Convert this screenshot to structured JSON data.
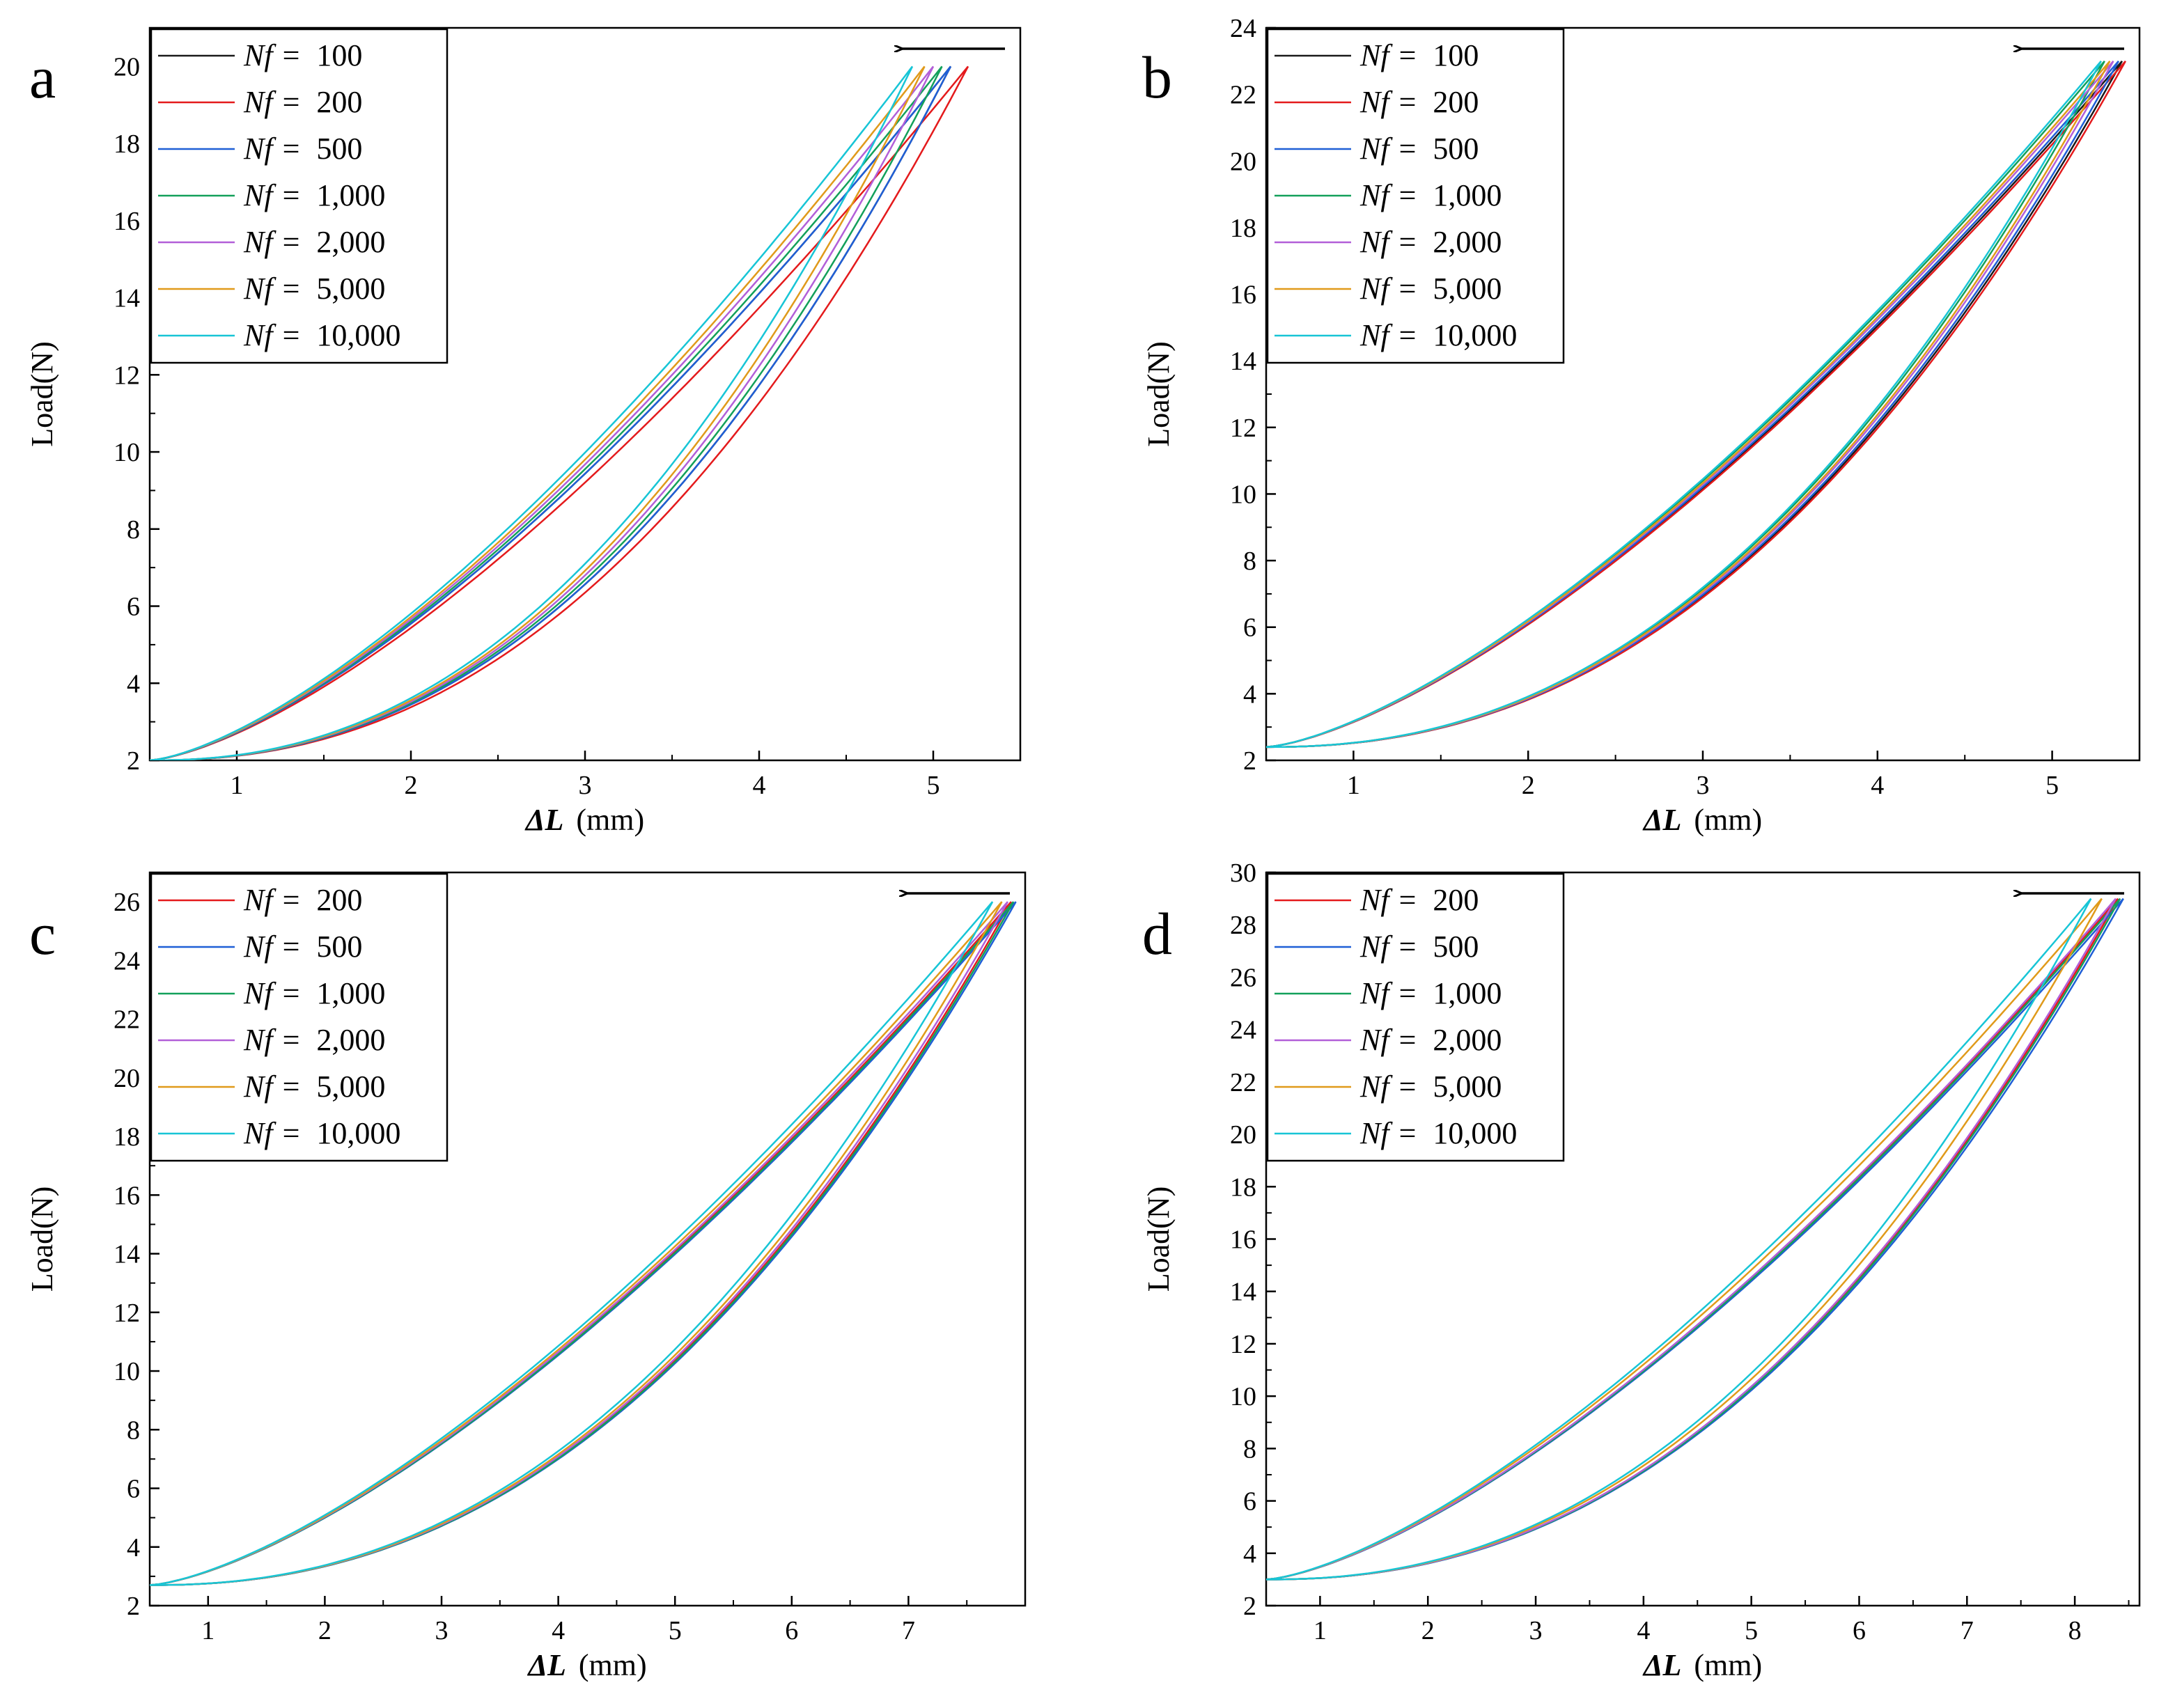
{
  "figure": {
    "colors": {
      "100": "#1a1a1a",
      "200": "#e41a1c",
      "500": "#1f5fd6",
      "1,000": "#13a05a",
      "2,000": "#b25fd8",
      "5,000": "#e09a1a",
      "10,000": "#17c5d6"
    }
  },
  "chart_data": [
    {
      "panel": "a",
      "type": "line",
      "xlabel_sym": "ΔL",
      "xlabel_unit": "(mm)",
      "ylabel": "Load(N)",
      "xlim": [
        0.5,
        5.5
      ],
      "ylim": [
        2,
        21
      ],
      "xticks": [
        1,
        2,
        3,
        4,
        5
      ],
      "yticks": [
        2,
        4,
        6,
        8,
        10,
        12,
        14,
        16,
        18,
        20
      ],
      "legend_prefix": "Nf",
      "legend_eq": "=",
      "annotation": "←",
      "series": [
        {
          "name": "100",
          "xmax": 5.1,
          "ymax": 20
        },
        {
          "name": "200",
          "xmax": 5.2,
          "ymax": 20
        },
        {
          "name": "500",
          "xmax": 5.1,
          "ymax": 20
        },
        {
          "name": "1,000",
          "xmax": 5.05,
          "ymax": 20
        },
        {
          "name": "2,000",
          "xmax": 5.0,
          "ymax": 20
        },
        {
          "name": "5,000",
          "xmax": 4.95,
          "ymax": 20
        },
        {
          "name": "10,000",
          "xmax": 4.88,
          "ymax": 20
        }
      ],
      "xmin": 0.5,
      "ymin": 2
    },
    {
      "panel": "b",
      "type": "line",
      "xlabel_sym": "ΔL",
      "xlabel_unit": "(mm)",
      "ylabel": "Load(N)",
      "xlim": [
        0.5,
        5.5
      ],
      "ylim": [
        2,
        24
      ],
      "xticks": [
        1,
        2,
        3,
        4,
        5
      ],
      "yticks": [
        2,
        4,
        6,
        8,
        10,
        12,
        14,
        16,
        18,
        20,
        22,
        24
      ],
      "legend_prefix": "Nf",
      "legend_eq": "=",
      "annotation": "←",
      "series": [
        {
          "name": "100",
          "xmax": 5.4,
          "ymax": 23
        },
        {
          "name": "200",
          "xmax": 5.42,
          "ymax": 23
        },
        {
          "name": "500",
          "xmax": 5.38,
          "ymax": 23
        },
        {
          "name": "1,000",
          "xmax": 5.3,
          "ymax": 23
        },
        {
          "name": "2,000",
          "xmax": 5.35,
          "ymax": 23
        },
        {
          "name": "5,000",
          "xmax": 5.33,
          "ymax": 23
        },
        {
          "name": "10,000",
          "xmax": 5.28,
          "ymax": 23
        }
      ],
      "xmin": 0.5,
      "ymin": 2.4
    },
    {
      "panel": "c",
      "type": "line",
      "xlabel_sym": "ΔL",
      "xlabel_unit": "(mm)",
      "ylabel": "Load(N)",
      "xlim": [
        0.5,
        8.0
      ],
      "ylim": [
        2,
        27
      ],
      "xticks": [
        1,
        2,
        3,
        4,
        5,
        6,
        7
      ],
      "yticks": [
        2,
        4,
        6,
        8,
        10,
        12,
        14,
        16,
        18,
        20,
        22,
        24,
        26
      ],
      "legend_prefix": "Nf",
      "legend_eq": "=",
      "annotation": "←",
      "series": [
        {
          "name": "200",
          "xmax": 7.88,
          "ymax": 26
        },
        {
          "name": "500",
          "xmax": 7.92,
          "ymax": 26
        },
        {
          "name": "1,000",
          "xmax": 7.9,
          "ymax": 26
        },
        {
          "name": "2,000",
          "xmax": 7.85,
          "ymax": 26
        },
        {
          "name": "5,000",
          "xmax": 7.8,
          "ymax": 26
        },
        {
          "name": "10,000",
          "xmax": 7.72,
          "ymax": 26
        }
      ],
      "xmin": 0.5,
      "ymin": 2.7
    },
    {
      "panel": "d",
      "type": "line",
      "xlabel_sym": "ΔL",
      "xlabel_unit": "(mm)",
      "ylabel": "Load(N)",
      "xlim": [
        0.5,
        8.6
      ],
      "ylim": [
        2,
        30
      ],
      "xticks": [
        1,
        2,
        3,
        4,
        5,
        6,
        7,
        8
      ],
      "yticks": [
        2,
        4,
        6,
        8,
        10,
        12,
        14,
        16,
        18,
        20,
        22,
        24,
        26,
        28,
        30
      ],
      "legend_prefix": "Nf",
      "legend_eq": "=",
      "annotation": "←",
      "series": [
        {
          "name": "200",
          "xmax": 8.4,
          "ymax": 29
        },
        {
          "name": "500",
          "xmax": 8.45,
          "ymax": 29
        },
        {
          "name": "1,000",
          "xmax": 8.42,
          "ymax": 29
        },
        {
          "name": "2,000",
          "xmax": 8.38,
          "ymax": 29
        },
        {
          "name": "5,000",
          "xmax": 8.25,
          "ymax": 29
        },
        {
          "name": "10,000",
          "xmax": 8.15,
          "ymax": 29
        }
      ],
      "xmin": 0.5,
      "ymin": 3.0
    }
  ]
}
